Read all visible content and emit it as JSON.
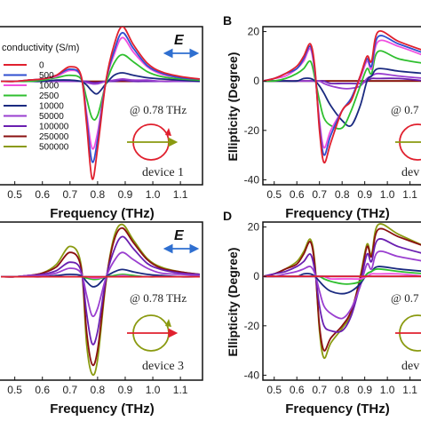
{
  "chart_data": [
    {
      "type": "line",
      "panel": "A",
      "panel_label": "",
      "xlabel": "Frequency (THz)",
      "ylabel": "",
      "xlim": [
        0.44,
        1.18
      ],
      "ylim": [
        -0.85,
        0.45
      ],
      "xticks": [
        "0.5",
        "0.6",
        "0.7",
        "0.8",
        "0.9",
        "1.0",
        "1.1"
      ],
      "yticks": [],
      "annotation": "@ 0.78 THz",
      "device_label": "device 1",
      "field_label": "E",
      "legend_title": "conductivity (S/m)",
      "series": [
        {
          "name": "0",
          "color": "#e0202e",
          "values": [
            0.0,
            0.0,
            0.01,
            0.02,
            0.05,
            0.12,
            0.05,
            -0.35,
            -0.8,
            -0.55,
            0.0,
            0.3,
            0.45,
            0.3,
            0.15,
            0.08,
            0.04,
            0.02
          ]
        },
        {
          "name": "500",
          "color": "#2f4fd0",
          "values": [
            0.0,
            0.0,
            0.01,
            0.02,
            0.05,
            0.1,
            0.04,
            -0.3,
            -0.66,
            -0.48,
            0.0,
            0.25,
            0.4,
            0.27,
            0.13,
            0.07,
            0.03,
            0.02
          ]
        },
        {
          "name": "1000",
          "color": "#f04fe0",
          "values": [
            0.0,
            0.0,
            0.01,
            0.02,
            0.04,
            0.09,
            0.04,
            -0.26,
            -0.55,
            -0.42,
            0.0,
            0.22,
            0.36,
            0.24,
            0.12,
            0.06,
            0.03,
            0.02
          ]
        },
        {
          "name": "2500",
          "color": "#2fbf2f",
          "values": [
            0.0,
            0.0,
            0.0,
            0.01,
            0.03,
            0.05,
            0.02,
            -0.14,
            -0.3,
            -0.28,
            -0.02,
            0.15,
            0.22,
            0.16,
            0.08,
            0.04,
            0.02,
            0.01
          ]
        },
        {
          "name": "10000",
          "color": "#1a2a80",
          "values": [
            0.0,
            0.0,
            0.0,
            0.0,
            0.01,
            0.01,
            0.0,
            -0.03,
            -0.08,
            -0.1,
            -0.02,
            0.05,
            0.07,
            0.05,
            0.03,
            0.02,
            0.01,
            0.0
          ]
        },
        {
          "name": "50000",
          "color": "#9a3fd0",
          "values": [
            0.0,
            0.0,
            0.0,
            0.0,
            0.0,
            0.0,
            0.0,
            -0.01,
            -0.02,
            -0.02,
            0.0,
            0.01,
            0.02,
            0.01,
            0.01,
            0.0,
            0.0,
            0.0
          ]
        },
        {
          "name": "100000",
          "color": "#6a1fb0",
          "values": [
            0.0,
            0.0,
            0.0,
            0.0,
            0.0,
            0.0,
            0.0,
            0.0,
            -0.01,
            -0.01,
            0.0,
            0.0,
            0.01,
            0.0,
            0.0,
            0.0,
            0.0,
            0.0
          ]
        },
        {
          "name": "250000",
          "color": "#8a1010",
          "values": [
            0.0,
            0.0,
            0.0,
            0.0,
            0.0,
            0.0,
            0.0,
            0.0,
            0.0,
            0.0,
            0.0,
            0.0,
            0.0,
            0.0,
            0.0,
            0.0,
            0.0,
            0.0
          ]
        },
        {
          "name": "500000",
          "color": "#8a9a10",
          "values": [
            0.0,
            0.0,
            0.0,
            0.0,
            0.0,
            0.0,
            0.0,
            0.0,
            0.0,
            0.0,
            0.0,
            0.0,
            0.0,
            0.0,
            0.0,
            0.0,
            0.0,
            0.0
          ]
        }
      ],
      "x": [
        0.45,
        0.5,
        0.55,
        0.6,
        0.65,
        0.7,
        0.74,
        0.76,
        0.78,
        0.8,
        0.83,
        0.86,
        0.89,
        0.93,
        0.98,
        1.03,
        1.1,
        1.17
      ]
    },
    {
      "type": "line",
      "panel": "B",
      "panel_label": "B",
      "xlabel": "Frequency (THz)",
      "ylabel": "Ellipticity (Degree)",
      "xlim": [
        0.45,
        1.18
      ],
      "ylim": [
        -42,
        22
      ],
      "xticks": [
        "0.5",
        "0.6",
        "0.7",
        "0.8",
        "0.9",
        "1.0",
        "1.1"
      ],
      "yticks": [
        "20",
        "0",
        "-20",
        "-40"
      ],
      "annotation": "@ 0.7",
      "device_label": "dev",
      "series": [
        {
          "name": "0",
          "color": "#e0202e",
          "values": [
            0,
            1,
            3,
            6,
            10,
            15,
            5,
            -20,
            -33,
            -25,
            -12,
            -8,
            2,
            10,
            8,
            20,
            16,
            12
          ]
        },
        {
          "name": "500",
          "color": "#2f4fd0",
          "values": [
            0,
            1,
            3,
            5,
            9,
            14,
            4,
            -18,
            -30,
            -22,
            -12,
            -7,
            2,
            9,
            6,
            18,
            15,
            11
          ]
        },
        {
          "name": "1000",
          "color": "#f04fe0",
          "values": [
            0,
            1,
            2,
            5,
            8,
            13,
            3,
            -16,
            -27,
            -20,
            -12,
            -7,
            1,
            8,
            5,
            16,
            14,
            10
          ]
        },
        {
          "name": "2500",
          "color": "#2fbf2f",
          "values": [
            0,
            0,
            1,
            3,
            5,
            8,
            1,
            -8,
            -15,
            -18,
            -19,
            -12,
            -2,
            5,
            3,
            12,
            9,
            7
          ]
        },
        {
          "name": "10000",
          "color": "#1a2a80",
          "values": [
            0,
            0,
            0,
            0,
            1,
            1,
            0,
            -2,
            -5,
            -10,
            -16,
            -18,
            -10,
            0,
            2,
            5,
            4,
            3
          ]
        },
        {
          "name": "50000",
          "color": "#9a3fd0",
          "values": [
            0,
            0,
            0,
            0,
            0,
            0,
            0,
            0,
            -1,
            -2,
            -3,
            -3,
            -2,
            1,
            2,
            3,
            2,
            1
          ]
        },
        {
          "name": "100000",
          "color": "#6a1fb0",
          "values": [
            0,
            0,
            0,
            0,
            0,
            0,
            0,
            0,
            0,
            -1,
            -1,
            -1,
            -1,
            0,
            1,
            1,
            1,
            0
          ]
        },
        {
          "name": "250000",
          "color": "#8a1010",
          "values": [
            0,
            0,
            0,
            0,
            0,
            0,
            0,
            0,
            0,
            0,
            0,
            0,
            0,
            0,
            0,
            0,
            0,
            0
          ]
        },
        {
          "name": "500000",
          "color": "#8a9a10",
          "values": [
            0,
            0,
            0,
            0,
            0,
            0,
            0,
            0,
            0,
            0,
            0,
            0,
            0,
            0,
            0,
            0,
            0,
            0
          ]
        }
      ],
      "x": [
        0.45,
        0.5,
        0.55,
        0.6,
        0.63,
        0.66,
        0.68,
        0.7,
        0.72,
        0.75,
        0.8,
        0.84,
        0.88,
        0.91,
        0.93,
        0.96,
        1.05,
        1.17
      ]
    },
    {
      "type": "line",
      "panel": "C",
      "panel_label": "",
      "xlabel": "Frequency (THz)",
      "ylabel": "",
      "xlim": [
        0.44,
        1.18
      ],
      "ylim": [
        -0.85,
        0.45
      ],
      "xticks": [
        "0.5",
        "0.6",
        "0.7",
        "0.8",
        "0.9",
        "1.0",
        "1.1"
      ],
      "yticks": [],
      "annotation": "@ 0.78 THz",
      "device_label": "device 3",
      "field_label": "E",
      "series": [
        {
          "name": "0",
          "color": "#e0202e",
          "values": [
            0,
            0,
            0,
            0,
            0,
            0,
            0,
            0,
            0,
            0,
            0,
            0,
            0,
            0,
            0,
            0,
            0,
            0
          ]
        },
        {
          "name": "500",
          "color": "#2f4fd0",
          "values": [
            0,
            0,
            0,
            0,
            0,
            0,
            0,
            0,
            0,
            0,
            0,
            0,
            0,
            0,
            0,
            0,
            0,
            0
          ]
        },
        {
          "name": "1000",
          "color": "#f04fe0",
          "values": [
            0,
            0,
            0,
            0,
            0,
            0,
            0,
            0,
            -0.01,
            -0.01,
            0,
            0,
            0.01,
            0,
            0,
            0,
            0,
            0
          ]
        },
        {
          "name": "2500",
          "color": "#2fbf2f",
          "values": [
            0,
            0,
            0,
            0,
            0,
            0,
            0,
            -0.01,
            -0.02,
            -0.02,
            0,
            0.01,
            0.02,
            0.01,
            0,
            0,
            0,
            0
          ]
        },
        {
          "name": "10000",
          "color": "#1a2a80",
          "values": [
            0,
            0,
            0,
            0,
            0.01,
            0.02,
            0.01,
            -0.04,
            -0.08,
            -0.07,
            0,
            0.04,
            0.06,
            0.04,
            0.02,
            0.01,
            0,
            0
          ]
        },
        {
          "name": "50000",
          "color": "#9a3fd0",
          "values": [
            0,
            0,
            0.01,
            0.01,
            0.03,
            0.07,
            0.03,
            -0.15,
            -0.32,
            -0.26,
            -0.01,
            0.13,
            0.2,
            0.14,
            0.07,
            0.03,
            0.02,
            0.01
          ]
        },
        {
          "name": "100000",
          "color": "#6a1fb0",
          "values": [
            0,
            0,
            0.01,
            0.02,
            0.05,
            0.12,
            0.05,
            -0.3,
            -0.55,
            -0.45,
            -0.02,
            0.22,
            0.33,
            0.23,
            0.11,
            0.06,
            0.03,
            0.02
          ]
        },
        {
          "name": "250000",
          "color": "#8a1010",
          "values": [
            0,
            0,
            0.01,
            0.03,
            0.08,
            0.2,
            0.08,
            -0.45,
            -0.72,
            -0.6,
            -0.04,
            0.3,
            0.4,
            0.28,
            0.14,
            0.07,
            0.04,
            0.02
          ]
        },
        {
          "name": "500000",
          "color": "#8a9a10",
          "values": [
            0,
            0,
            0.01,
            0.03,
            0.1,
            0.25,
            0.1,
            -0.55,
            -0.8,
            -0.68,
            -0.05,
            0.33,
            0.43,
            0.3,
            0.15,
            0.08,
            0.04,
            0.02
          ]
        }
      ],
      "x": [
        0.45,
        0.5,
        0.55,
        0.6,
        0.65,
        0.7,
        0.74,
        0.76,
        0.78,
        0.8,
        0.83,
        0.86,
        0.89,
        0.93,
        0.98,
        1.03,
        1.1,
        1.17
      ]
    },
    {
      "type": "line",
      "panel": "D",
      "panel_label": "D",
      "xlabel": "Frequency (THz)",
      "ylabel": "Ellipticity (Degree)",
      "xlim": [
        0.45,
        1.18
      ],
      "ylim": [
        -42,
        22
      ],
      "xticks": [
        "0.5",
        "0.6",
        "0.7",
        "0.8",
        "0.9",
        "1.0",
        "1.1"
      ],
      "yticks": [
        "20",
        "0",
        "-20",
        "-40"
      ],
      "annotation": "@ 0.7",
      "device_label": "dev",
      "series": [
        {
          "name": "0",
          "color": "#e0202e",
          "values": [
            0,
            0,
            0,
            0,
            0,
            0,
            0,
            0,
            0,
            0,
            0,
            0,
            0,
            0,
            0,
            0,
            0,
            0
          ]
        },
        {
          "name": "500",
          "color": "#2f4fd0",
          "values": [
            0,
            0,
            0,
            0,
            0,
            0,
            0,
            0,
            0,
            0,
            0,
            0,
            0,
            0,
            0,
            0,
            0,
            0
          ]
        },
        {
          "name": "1000",
          "color": "#f04fe0",
          "values": [
            0,
            0,
            0,
            0,
            0,
            0,
            0,
            0,
            0,
            -1,
            -1,
            -1,
            -1,
            0,
            1,
            1,
            1,
            0
          ]
        },
        {
          "name": "2500",
          "color": "#2fbf2f",
          "values": [
            0,
            0,
            0,
            0,
            0,
            0,
            0,
            0,
            -1,
            -2,
            -3,
            -3,
            -2,
            1,
            2,
            3,
            2,
            1
          ]
        },
        {
          "name": "10000",
          "color": "#1a2a80",
          "values": [
            0,
            0,
            0,
            0,
            1,
            1,
            0,
            -2,
            -4,
            -6,
            -7,
            -6,
            -3,
            1,
            2,
            4,
            3,
            2
          ]
        },
        {
          "name": "50000",
          "color": "#9a3fd0",
          "values": [
            0,
            0,
            1,
            2,
            3,
            4,
            1,
            -6,
            -12,
            -15,
            -17,
            -13,
            -4,
            5,
            3,
            10,
            8,
            6
          ]
        },
        {
          "name": "100000",
          "color": "#6a1fb0",
          "values": [
            0,
            1,
            2,
            4,
            6,
            9,
            2,
            -12,
            -20,
            -22,
            -22,
            -16,
            -3,
            9,
            6,
            15,
            12,
            9
          ]
        },
        {
          "name": "250000",
          "color": "#8a1010",
          "values": [
            0,
            1,
            3,
            5,
            9,
            14,
            4,
            -20,
            -30,
            -25,
            -20,
            -14,
            -1,
            12,
            8,
            19,
            16,
            12
          ]
        },
        {
          "name": "500000",
          "color": "#8a9a10",
          "values": [
            0,
            1,
            3,
            6,
            10,
            15,
            5,
            -22,
            -33,
            -27,
            -21,
            -15,
            0,
            13,
            9,
            21,
            17,
            12
          ]
        }
      ],
      "x": [
        0.45,
        0.5,
        0.55,
        0.6,
        0.63,
        0.66,
        0.68,
        0.7,
        0.72,
        0.75,
        0.8,
        0.84,
        0.88,
        0.91,
        0.93,
        0.96,
        1.05,
        1.17
      ]
    }
  ],
  "legend": {
    "title": "conductivity (S/m)",
    "entries": [
      "0",
      "500",
      "1000",
      "2500",
      "10000",
      "50000",
      "100000",
      "250000",
      "500000"
    ]
  },
  "colors": {
    "circle_arrow": "#e0202e",
    "circle_arrow_alt": "#8a9a10",
    "field_arrow": "#2f6fd0",
    "linear_arrow_1": "#8a9a10",
    "linear_arrow_2": "#e0202e"
  }
}
